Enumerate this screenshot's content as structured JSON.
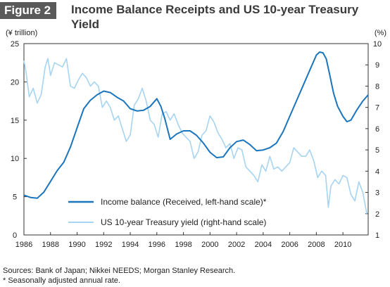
{
  "figure_label": "Figure 2",
  "title": "Income Balance Receipts and US 10-year Treasury Yield",
  "notes": {
    "sources": "Sources: Bank of Japan; Nikkei NEEDS; Morgan Stanley Research.",
    "footnote": "* Seasonally adjusted annual rate."
  },
  "colors": {
    "income": "#1a75bc",
    "yield": "#a6d4f2",
    "header_bg": "#5a5a5a"
  },
  "chart_data": {
    "type": "line",
    "ylabel_left": "(¥ trillion)",
    "ylabel_right": "(%)",
    "xlim": [
      1986,
      2011.9
    ],
    "ylim_left": [
      0,
      25
    ],
    "ylim_right": [
      1,
      10
    ],
    "x_ticks": [
      "1986",
      "1988",
      "1990",
      "1992",
      "1994",
      "1996",
      "1998",
      "2000",
      "2002",
      "2004",
      "2006",
      "2008",
      "2010"
    ],
    "y_ticks_left": [
      "0",
      "5",
      "10",
      "15",
      "20",
      "25"
    ],
    "y_ticks_right": [
      "1",
      "2",
      "3",
      "4",
      "5",
      "6",
      "7",
      "8",
      "9",
      "10"
    ],
    "grid": false,
    "legend_position": "bottom-center",
    "series": [
      {
        "name": "Income balance (Received, left-hand scale)*",
        "axis": "left",
        "x": [
          1986.0,
          1986.5,
          1987.0,
          1987.5,
          1988.0,
          1988.5,
          1989.0,
          1989.5,
          1990.0,
          1990.5,
          1991.0,
          1991.5,
          1992.0,
          1992.5,
          1993.0,
          1993.5,
          1994.0,
          1994.5,
          1995.0,
          1995.5,
          1996.0,
          1996.3,
          1996.6,
          1997.0,
          1997.5,
          1998.0,
          1998.5,
          1999.0,
          1999.5,
          2000.0,
          2000.5,
          2001.0,
          2001.5,
          2002.0,
          2002.5,
          2003.0,
          2003.5,
          2004.0,
          2004.5,
          2005.0,
          2005.5,
          2006.0,
          2006.5,
          2007.0,
          2007.5,
          2008.0,
          2008.25,
          2008.5,
          2008.75,
          2009.0,
          2009.3,
          2009.6,
          2010.0,
          2010.3,
          2010.6,
          2011.0,
          2011.5,
          2011.9
        ],
        "values": [
          5.2,
          4.9,
          4.8,
          5.6,
          7.0,
          8.4,
          9.5,
          11.5,
          14.0,
          16.5,
          17.6,
          18.3,
          18.8,
          18.6,
          18.0,
          17.5,
          16.5,
          16.2,
          16.3,
          16.8,
          17.8,
          16.8,
          15.2,
          12.5,
          13.2,
          13.6,
          13.6,
          13.0,
          12.0,
          10.8,
          10.1,
          10.2,
          11.4,
          12.2,
          12.4,
          11.8,
          11.0,
          11.1,
          11.4,
          12.0,
          13.5,
          15.5,
          17.5,
          19.5,
          21.5,
          23.5,
          23.9,
          23.8,
          23.0,
          21.0,
          18.5,
          16.8,
          15.5,
          14.8,
          15.0,
          16.2,
          17.5,
          18.3
        ]
      },
      {
        "name": "US 10-year Treasury yield (right-hand scale)",
        "axis": "right",
        "x": [
          1986.0,
          1986.15,
          1986.4,
          1986.7,
          1987.0,
          1987.3,
          1987.6,
          1987.8,
          1988.0,
          1988.3,
          1988.6,
          1988.9,
          1989.2,
          1989.5,
          1989.8,
          1990.1,
          1990.4,
          1990.7,
          1991.0,
          1991.3,
          1991.6,
          1991.9,
          1992.2,
          1992.5,
          1992.8,
          1993.1,
          1993.4,
          1993.7,
          1994.0,
          1994.3,
          1994.6,
          1994.9,
          1995.2,
          1995.5,
          1995.8,
          1996.1,
          1996.4,
          1996.7,
          1997.0,
          1997.3,
          1997.6,
          1997.9,
          1998.2,
          1998.5,
          1998.8,
          1999.1,
          1999.4,
          1999.7,
          2000.0,
          2000.3,
          2000.6,
          2000.9,
          2001.2,
          2001.5,
          2001.8,
          2002.1,
          2002.4,
          2002.7,
          2003.0,
          2003.3,
          2003.6,
          2003.9,
          2004.2,
          2004.5,
          2004.8,
          2005.1,
          2005.4,
          2005.7,
          2006.0,
          2006.3,
          2006.6,
          2006.9,
          2007.2,
          2007.5,
          2007.8,
          2008.1,
          2008.4,
          2008.7,
          2008.9,
          2009.1,
          2009.4,
          2009.7,
          2010.0,
          2010.3,
          2010.6,
          2010.9,
          2011.2,
          2011.5,
          2011.8
        ],
        "values": [
          9.2,
          8.7,
          7.5,
          7.9,
          7.2,
          7.6,
          8.9,
          9.3,
          8.5,
          9.1,
          9.0,
          8.9,
          9.3,
          8.0,
          7.9,
          8.3,
          8.6,
          8.4,
          8.0,
          8.2,
          8.0,
          7.0,
          7.3,
          7.0,
          6.4,
          6.6,
          6.0,
          5.4,
          5.7,
          7.1,
          7.4,
          7.9,
          7.3,
          6.4,
          6.2,
          5.6,
          6.7,
          6.8,
          6.4,
          6.7,
          6.2,
          5.8,
          5.6,
          5.4,
          4.6,
          4.9,
          5.7,
          5.9,
          6.6,
          6.3,
          5.8,
          5.5,
          5.1,
          5.3,
          4.6,
          5.1,
          5.0,
          4.2,
          4.0,
          3.8,
          3.5,
          4.3,
          4.0,
          4.7,
          4.1,
          4.2,
          4.0,
          4.2,
          4.4,
          5.1,
          4.9,
          4.7,
          4.7,
          5.0,
          4.5,
          3.7,
          4.0,
          3.8,
          2.3,
          3.3,
          3.6,
          3.4,
          3.8,
          3.7,
          2.9,
          2.6,
          3.5,
          3.0,
          2.0
        ]
      }
    ]
  }
}
